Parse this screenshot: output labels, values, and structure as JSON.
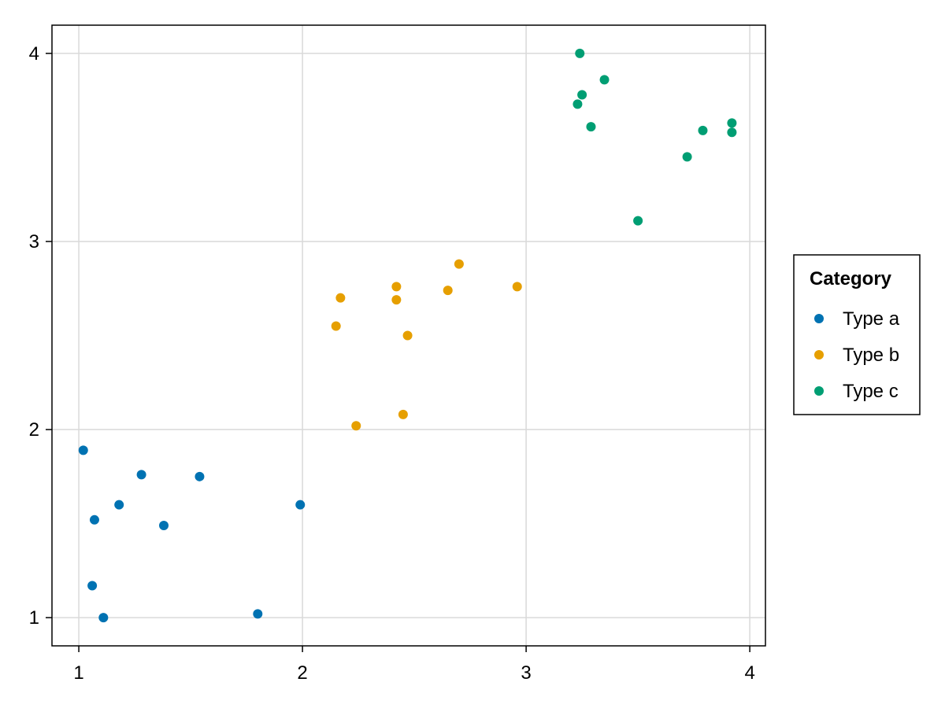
{
  "chart_data": {
    "type": "scatter",
    "title": "",
    "xlabel": "",
    "ylabel": "",
    "xlim": [
      0.88,
      4.07
    ],
    "ylim": [
      0.85,
      4.15
    ],
    "xticks": [
      1,
      2,
      3,
      4
    ],
    "yticks": [
      1,
      2,
      3,
      4
    ],
    "x_tick_labels": [
      "1",
      "2",
      "3",
      "4"
    ],
    "y_tick_labels": [
      "1",
      "2",
      "3",
      "4"
    ],
    "grid": true,
    "legend": {
      "title": "Category",
      "placement": "right"
    },
    "series": [
      {
        "name": "Type a",
        "color": "#0072b2",
        "points": [
          {
            "x": 1.02,
            "y": 1.89
          },
          {
            "x": 1.07,
            "y": 1.52
          },
          {
            "x": 1.06,
            "y": 1.17
          },
          {
            "x": 1.11,
            "y": 1.0
          },
          {
            "x": 1.18,
            "y": 1.6
          },
          {
            "x": 1.28,
            "y": 1.76
          },
          {
            "x": 1.38,
            "y": 1.49
          },
          {
            "x": 1.54,
            "y": 1.75
          },
          {
            "x": 1.8,
            "y": 1.02
          },
          {
            "x": 1.99,
            "y": 1.6
          }
        ]
      },
      {
        "name": "Type b",
        "color": "#e69f00",
        "points": [
          {
            "x": 2.15,
            "y": 2.55
          },
          {
            "x": 2.17,
            "y": 2.7
          },
          {
            "x": 2.24,
            "y": 2.02
          },
          {
            "x": 2.42,
            "y": 2.76
          },
          {
            "x": 2.42,
            "y": 2.69
          },
          {
            "x": 2.45,
            "y": 2.08
          },
          {
            "x": 2.47,
            "y": 2.5
          },
          {
            "x": 2.65,
            "y": 2.74
          },
          {
            "x": 2.7,
            "y": 2.88
          },
          {
            "x": 2.96,
            "y": 2.76
          }
        ]
      },
      {
        "name": "Type c",
        "color": "#009e73",
        "points": [
          {
            "x": 3.24,
            "y": 4.0
          },
          {
            "x": 3.25,
            "y": 3.78
          },
          {
            "x": 3.23,
            "y": 3.73
          },
          {
            "x": 3.29,
            "y": 3.61
          },
          {
            "x": 3.35,
            "y": 3.86
          },
          {
            "x": 3.5,
            "y": 3.11
          },
          {
            "x": 3.72,
            "y": 3.45
          },
          {
            "x": 3.79,
            "y": 3.59
          },
          {
            "x": 3.92,
            "y": 3.63
          },
          {
            "x": 3.92,
            "y": 3.58
          }
        ]
      }
    ]
  }
}
